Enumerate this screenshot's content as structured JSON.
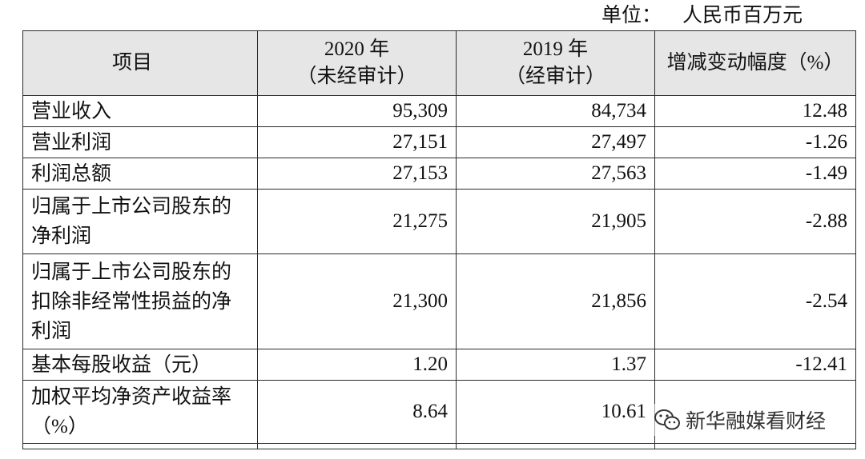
{
  "unit": {
    "label": "单位：",
    "value": "人民币百万元"
  },
  "table": {
    "headers": {
      "item": "项目",
      "col2020_year": "2020 年",
      "col2020_note": "（未经审计）",
      "col2019_year": "2019 年",
      "col2019_note": "（经审计）",
      "change": "增减变动幅度（%）"
    },
    "rows": [
      {
        "label": "营业收入",
        "v2020": "95,309",
        "v2019": "84,734",
        "change": "12.48"
      },
      {
        "label": "营业利润",
        "v2020": "27,151",
        "v2019": "27,497",
        "change": "-1.26"
      },
      {
        "label": "利润总额",
        "v2020": "27,153",
        "v2019": "27,563",
        "change": "-1.49"
      },
      {
        "label_lines": [
          "归属于上市公司股东的",
          "净利润"
        ],
        "v2020": "21,275",
        "v2019": "21,905",
        "change": "-2.88"
      },
      {
        "label_lines": [
          "归属于上市公司股东的",
          "扣除非经常性损益的净",
          "利润"
        ],
        "v2020": "21,300",
        "v2019": "21,856",
        "change": "-2.54"
      },
      {
        "label": "基本每股收益（元）",
        "v2020": "1.20",
        "v2019": "1.37",
        "change": "-12.41"
      },
      {
        "label_lines": [
          "加权平均净资产收益率",
          "（%）"
        ],
        "v2020": "8.64",
        "v2019": "10.61",
        "change": ""
      }
    ]
  },
  "watermark": {
    "text": "新华融媒看财经",
    "icon": "wechat-icon"
  }
}
